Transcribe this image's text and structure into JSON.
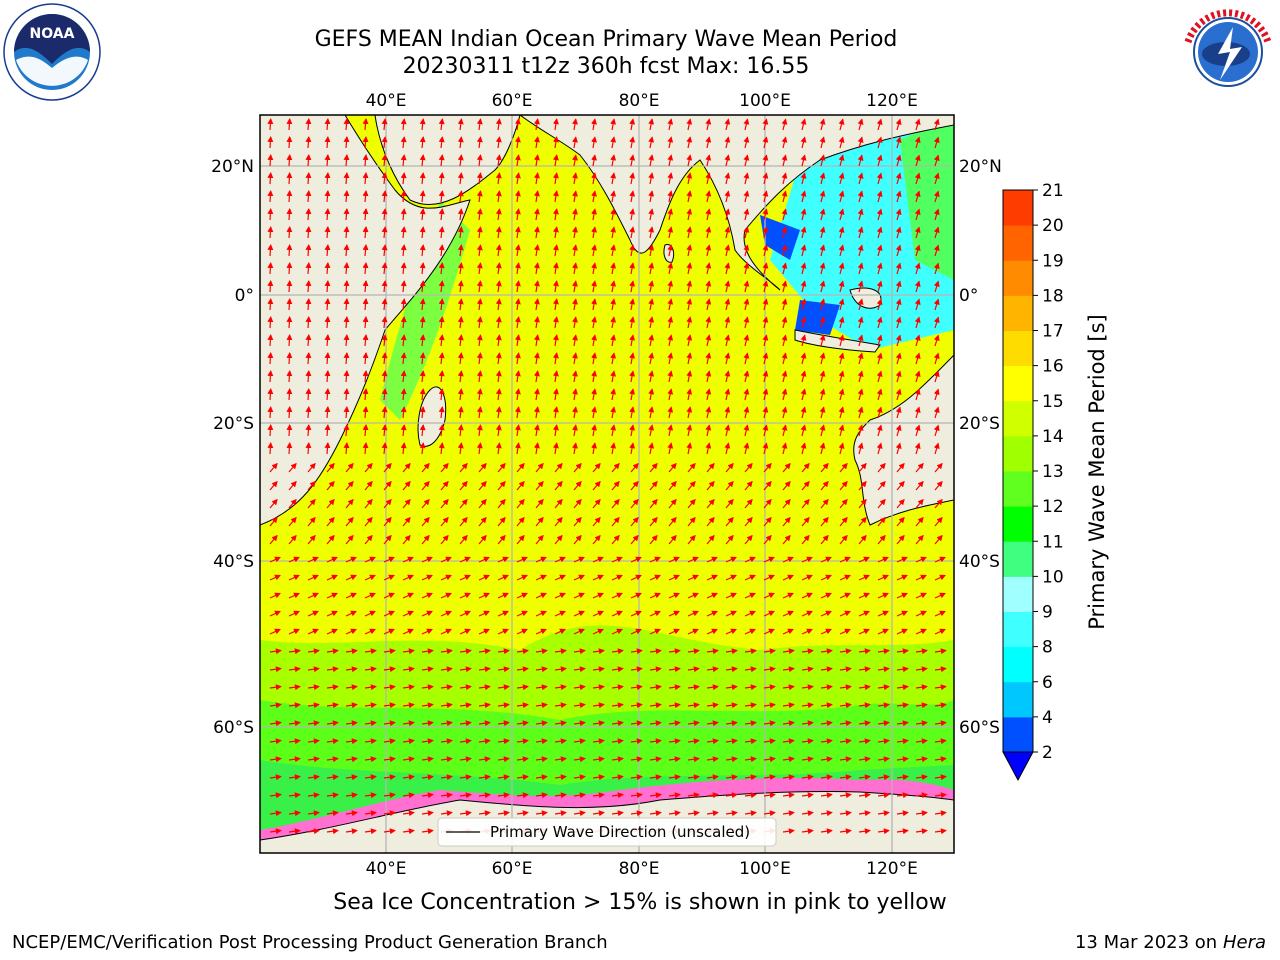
{
  "title_line1": "GEFS MEAN Indian Ocean Primary Wave Mean Period",
  "title_line2": "20230311 t12z 360h fcst   Max: 16.55",
  "lon_labels": [
    "40°E",
    "60°E",
    "80°E",
    "100°E",
    "120°E"
  ],
  "lat_labels": [
    "20°N",
    "0°",
    "20°S",
    "40°S",
    "60°S"
  ],
  "colorbar": {
    "label": "Primary Wave Mean Period [s]",
    "ticks": [
      "2",
      "4",
      "6",
      "8",
      "9",
      "10",
      "11",
      "12",
      "13",
      "14",
      "15",
      "16",
      "17",
      "18",
      "19",
      "20",
      "21"
    ],
    "colors": [
      "#0050ff",
      "#00c8ff",
      "#00ffff",
      "#40ffff",
      "#a0ffff",
      "#40ff80",
      "#00ff00",
      "#60ff20",
      "#a0ff00",
      "#d0ff00",
      "#ffff00",
      "#ffdc00",
      "#ffb400",
      "#ff8c00",
      "#ff6400",
      "#ff3c00",
      "#ff0000"
    ],
    "under_color": "#0000ff"
  },
  "legend_label": "Primary Wave Direction (unscaled)",
  "arrow_color": "#ff0000",
  "land_color": "#efedde",
  "subtitle": "Sea Ice Concentration > 15% is shown in pink to yellow",
  "footer_left": "NCEP/EMC/Verification Post Processing Product Generation Branch",
  "footer_right_date": "13 Mar 2023 on",
  "footer_right_host": "Hera",
  "logos": {
    "left": "noaa-logo",
    "right": "nws-logo"
  }
}
